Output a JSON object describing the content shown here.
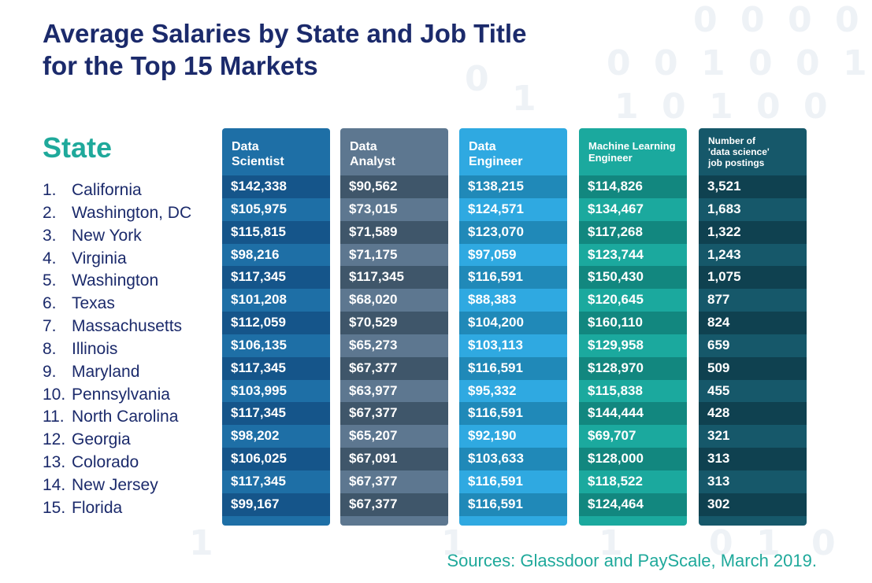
{
  "title": {
    "line1": "Average Salaries by State and Job Title",
    "line2": "for the Top 15 Markets"
  },
  "state_heading": "State",
  "sources": "Sources: Glassdoor and PayScale, March 2019.",
  "colors": {
    "title": "#1b2a6b",
    "accent": "#1fa99b",
    "data_scientist": [
      "#1e6fa6",
      "#15558a"
    ],
    "data_analyst": [
      "#5d7790",
      "#3f566a"
    ],
    "data_engineer": [
      "#2fa9e1",
      "#2089b8"
    ],
    "ml_engineer": [
      "#1ba99e",
      "#12877f"
    ],
    "postings": [
      "#16586a",
      "#0f4150"
    ]
  },
  "chart_data": {
    "type": "table",
    "title": "Average Salaries by State and Job Title for the Top 15 Markets",
    "columns": [
      {
        "key": "data_scientist",
        "label_lines": [
          "Data",
          "Scientist"
        ],
        "size": "normal"
      },
      {
        "key": "data_analyst",
        "label_lines": [
          "Data",
          "Analyst"
        ],
        "size": "normal"
      },
      {
        "key": "data_engineer",
        "label_lines": [
          "Data",
          "Engineer"
        ],
        "size": "normal"
      },
      {
        "key": "ml_engineer",
        "label_lines": [
          "Machine Learning",
          "Engineer"
        ],
        "size": "small"
      },
      {
        "key": "postings",
        "label_lines": [
          "Number of",
          "'data science'",
          "job postings"
        ],
        "size": "tiny"
      }
    ],
    "states": [
      {
        "rank": "1.",
        "name": "California"
      },
      {
        "rank": "2.",
        "name": "Washington, DC"
      },
      {
        "rank": "3.",
        "name": "New York"
      },
      {
        "rank": "4.",
        "name": "Virginia"
      },
      {
        "rank": "5.",
        "name": "Washington"
      },
      {
        "rank": "6.",
        "name": "Texas"
      },
      {
        "rank": "7.",
        "name": "Massachusetts"
      },
      {
        "rank": "8.",
        "name": "Illinois"
      },
      {
        "rank": "9.",
        "name": "Maryland"
      },
      {
        "rank": "10.",
        "name": "Pennsylvania"
      },
      {
        "rank": "11.",
        "name": "North Carolina"
      },
      {
        "rank": "12.",
        "name": "Georgia"
      },
      {
        "rank": "13.",
        "name": "Colorado"
      },
      {
        "rank": "14.",
        "name": "New Jersey"
      },
      {
        "rank": "15.",
        "name": "Florida"
      }
    ],
    "values": {
      "data_scientist": [
        "$142,338",
        "$105,975",
        "$115,815",
        "$98,216",
        "$117,345",
        "$101,208",
        "$112,059",
        "$106,135",
        "$117,345",
        "$103,995",
        "$117,345",
        "$98,202",
        "$106,025",
        "$117,345",
        "$99,167"
      ],
      "data_analyst": [
        "$90,562",
        "$73,015",
        "$71,589",
        "$71,175",
        "$117,345",
        "$68,020",
        "$70,529",
        "$65,273",
        "$67,377",
        "$63,977",
        "$67,377",
        "$65,207",
        "$67,091",
        "$67,377",
        "$67,377"
      ],
      "data_engineer": [
        "$138,215",
        "$124,571",
        "$123,070",
        "$97,059",
        "$116,591",
        "$88,383",
        "$104,200",
        "$103,113",
        "$116,591",
        "$95,332",
        "$116,591",
        "$92,190",
        "$103,633",
        "$116,591",
        "$116,591"
      ],
      "ml_engineer": [
        "$114,826",
        "$134,467",
        "$117,268",
        "$123,744",
        "$150,430",
        "$120,645",
        "$160,110",
        "$129,958",
        "$128,970",
        "$115,838",
        "$144,444",
        "$69,707",
        "$128,000",
        "$118,522",
        "$124,464"
      ],
      "postings": [
        "3,521",
        "1,683",
        "1,322",
        "1,243",
        "1,075",
        "877",
        "824",
        "659",
        "509",
        "455",
        "428",
        "321",
        "313",
        "313",
        "302"
      ]
    }
  }
}
